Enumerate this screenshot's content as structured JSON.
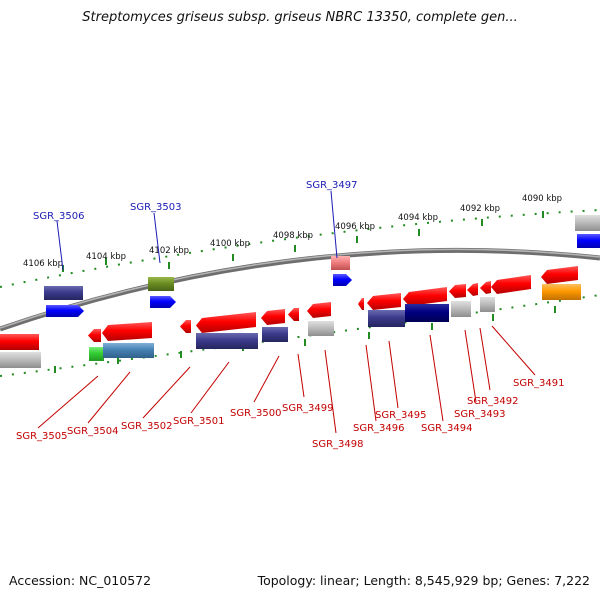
{
  "title": "Streptomyces griseus subsp. griseus NBRC 13350, complete gen...",
  "footer": {
    "accession": "Accession: NC_010572",
    "summary": "Topology: linear; Length: 8,545,929 bp; Genes: 7,222"
  },
  "ruler_ticks": [
    "4106 kbp",
    "4104 kbp",
    "4102 kbp",
    "4100 kbp",
    "4098 kbp",
    "4096 kbp",
    "4094 kbp",
    "4092 kbp",
    "4090 kbp"
  ],
  "genes_top": [
    "SGR_3506",
    "SGR_3503",
    "SGR_3497"
  ],
  "genes_bottom": [
    "SGR_3505",
    "SGR_3504",
    "SGR_3502",
    "SGR_3501",
    "SGR_3500",
    "SGR_3499",
    "SGR_3498",
    "SGR_3496",
    "SGR_3495",
    "SGR_3494",
    "SGR_3493",
    "SGR_3492",
    "SGR_3491"
  ],
  "colors": {
    "backbone": "#888888",
    "gene_red": "#ff0000",
    "gene_navy": "#3a3a8c",
    "gene_blue": "#0000ff",
    "gene_gray": "#c0c0c0",
    "gene_olive": "#6b8e23",
    "gene_green": "#33cc33",
    "gene_steel": "#4682b4",
    "gene_orange": "#ff9900",
    "gene_salmon": "#f08080",
    "gene_darknavy": "#000080",
    "label_top": "#1a1ab4",
    "label_bottom": "#c40000",
    "ruler": "#228b22"
  }
}
